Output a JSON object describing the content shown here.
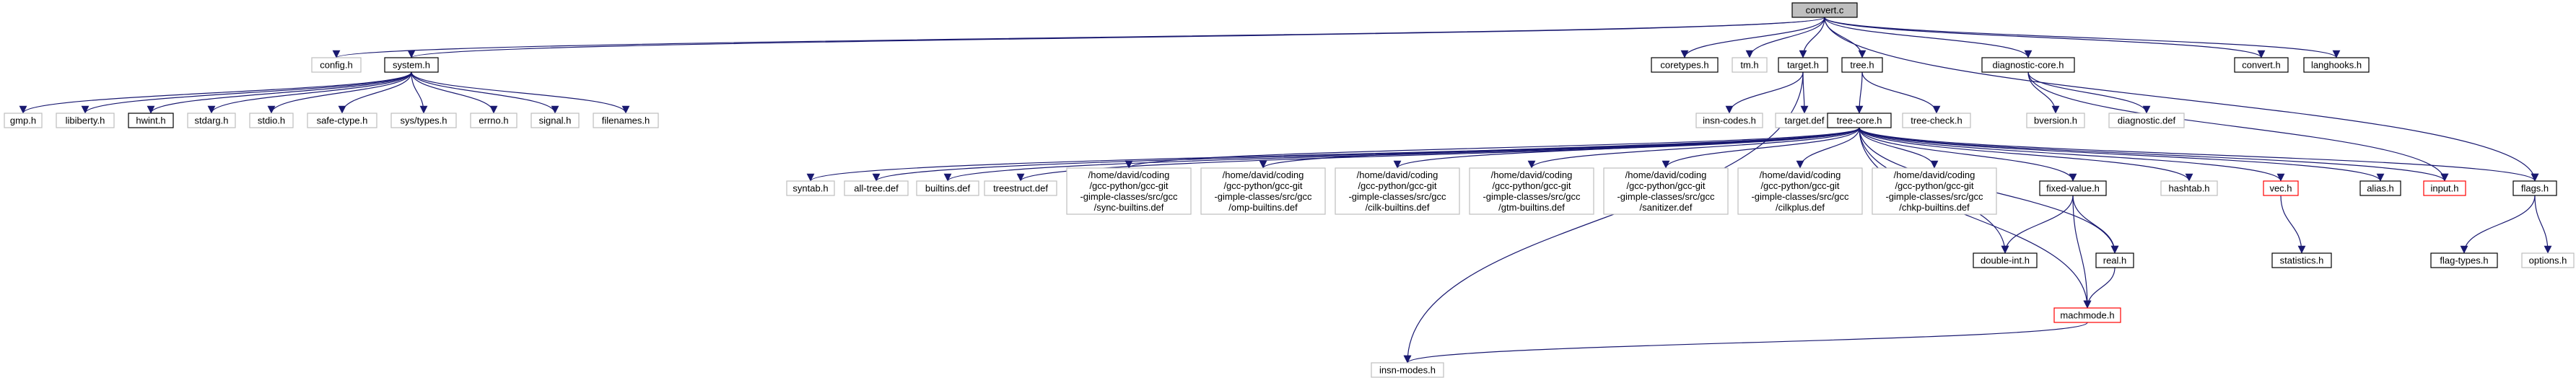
{
  "title": "convert.c",
  "colors": {
    "root_fill": "#bfbfbf",
    "root_stroke": "#000000",
    "documented_stroke": "#000000",
    "undocumented_stroke": "#bfbfbf",
    "truncated_stroke": "#ff0000",
    "edge": "#191970"
  },
  "nodes": [
    {
      "id": "convert_c",
      "lines": [
        "convert.c"
      ],
      "style": "root"
    },
    {
      "id": "config_h",
      "lines": [
        "config.h"
      ],
      "style": "gray"
    },
    {
      "id": "system_h",
      "lines": [
        "system.h"
      ],
      "style": "black"
    },
    {
      "id": "coretypes_h",
      "lines": [
        "coretypes.h"
      ],
      "style": "black"
    },
    {
      "id": "tm_h",
      "lines": [
        "tm.h"
      ],
      "style": "gray"
    },
    {
      "id": "target_h",
      "lines": [
        "target.h"
      ],
      "style": "black"
    },
    {
      "id": "tree_h",
      "lines": [
        "tree.h"
      ],
      "style": "black"
    },
    {
      "id": "diagnostic_core_h",
      "lines": [
        "diagnostic-core.h"
      ],
      "style": "black"
    },
    {
      "id": "convert_h",
      "lines": [
        "convert.h"
      ],
      "style": "black"
    },
    {
      "id": "langhooks_h",
      "lines": [
        "langhooks.h"
      ],
      "style": "black"
    },
    {
      "id": "gmp_h",
      "lines": [
        "gmp.h"
      ],
      "style": "gray"
    },
    {
      "id": "libiberty_h",
      "lines": [
        "libiberty.h"
      ],
      "style": "gray"
    },
    {
      "id": "hwint_h",
      "lines": [
        "hwint.h"
      ],
      "style": "black"
    },
    {
      "id": "stdarg_h",
      "lines": [
        "stdarg.h"
      ],
      "style": "gray"
    },
    {
      "id": "stdio_h",
      "lines": [
        "stdio.h"
      ],
      "style": "gray"
    },
    {
      "id": "safe_ctype_h",
      "lines": [
        "safe-ctype.h"
      ],
      "style": "gray"
    },
    {
      "id": "sys_types_h",
      "lines": [
        "sys/types.h"
      ],
      "style": "gray"
    },
    {
      "id": "errno_h",
      "lines": [
        "errno.h"
      ],
      "style": "gray"
    },
    {
      "id": "signal_h",
      "lines": [
        "signal.h"
      ],
      "style": "gray"
    },
    {
      "id": "filenames_h",
      "lines": [
        "filenames.h"
      ],
      "style": "gray"
    },
    {
      "id": "insn_codes_h",
      "lines": [
        "insn-codes.h"
      ],
      "style": "gray"
    },
    {
      "id": "target_def",
      "lines": [
        "target.def"
      ],
      "style": "gray"
    },
    {
      "id": "tree_core_h",
      "lines": [
        "tree-core.h"
      ],
      "style": "black"
    },
    {
      "id": "tree_check_h",
      "lines": [
        "tree-check.h"
      ],
      "style": "gray"
    },
    {
      "id": "bversion_h",
      "lines": [
        "bversion.h"
      ],
      "style": "gray"
    },
    {
      "id": "diagnostic_def",
      "lines": [
        "diagnostic.def"
      ],
      "style": "gray"
    },
    {
      "id": "flags_h",
      "lines": [
        "flags.h"
      ],
      "style": "black"
    },
    {
      "id": "syntab_h",
      "lines": [
        "syntab.h"
      ],
      "style": "gray"
    },
    {
      "id": "all_tree_def",
      "lines": [
        "all-tree.def"
      ],
      "style": "gray"
    },
    {
      "id": "builtins_def",
      "lines": [
        "builtins.def"
      ],
      "style": "gray"
    },
    {
      "id": "treestruct_def",
      "lines": [
        "treestruct.def"
      ],
      "style": "gray"
    },
    {
      "id": "sync_builtins",
      "lines": [
        "/home/david/coding",
        "/gcc-python/gcc-git",
        "-gimple-classes/src/gcc",
        "/sync-builtins.def"
      ],
      "style": "gray"
    },
    {
      "id": "omp_builtins",
      "lines": [
        "/home/david/coding",
        "/gcc-python/gcc-git",
        "-gimple-classes/src/gcc",
        "/omp-builtins.def"
      ],
      "style": "gray"
    },
    {
      "id": "cilk_builtins",
      "lines": [
        "/home/david/coding",
        "/gcc-python/gcc-git",
        "-gimple-classes/src/gcc",
        "/cilk-builtins.def"
      ],
      "style": "gray"
    },
    {
      "id": "gtm_builtins",
      "lines": [
        "/home/david/coding",
        "/gcc-python/gcc-git",
        "-gimple-classes/src/gcc",
        "/gtm-builtins.def"
      ],
      "style": "gray"
    },
    {
      "id": "sanitizer_def",
      "lines": [
        "/home/david/coding",
        "/gcc-python/gcc-git",
        "-gimple-classes/src/gcc",
        "/sanitizer.def"
      ],
      "style": "gray"
    },
    {
      "id": "cilkplus_def",
      "lines": [
        "/home/david/coding",
        "/gcc-python/gcc-git",
        "-gimple-classes/src/gcc",
        "/cilkplus.def"
      ],
      "style": "gray"
    },
    {
      "id": "chkp_builtins",
      "lines": [
        "/home/david/coding",
        "/gcc-python/gcc-git",
        "-gimple-classes/src/gcc",
        "/chkp-builtins.def"
      ],
      "style": "gray"
    },
    {
      "id": "fixed_value_h",
      "lines": [
        "fixed-value.h"
      ],
      "style": "black"
    },
    {
      "id": "hashtab_h",
      "lines": [
        "hashtab.h"
      ],
      "style": "gray"
    },
    {
      "id": "vec_h",
      "lines": [
        "vec.h"
      ],
      "style": "red"
    },
    {
      "id": "alias_h",
      "lines": [
        "alias.h"
      ],
      "style": "black"
    },
    {
      "id": "input_h",
      "lines": [
        "input.h"
      ],
      "style": "red"
    },
    {
      "id": "double_int_h",
      "lines": [
        "double-int.h"
      ],
      "style": "black"
    },
    {
      "id": "real_h",
      "lines": [
        "real.h"
      ],
      "style": "black"
    },
    {
      "id": "statistics_h",
      "lines": [
        "statistics.h"
      ],
      "style": "black"
    },
    {
      "id": "flag_types_h",
      "lines": [
        "flag-types.h"
      ],
      "style": "black"
    },
    {
      "id": "options_h",
      "lines": [
        "options.h"
      ],
      "style": "gray"
    },
    {
      "id": "machmode_h",
      "lines": [
        "machmode.h"
      ],
      "style": "red"
    },
    {
      "id": "insn_modes_h",
      "lines": [
        "insn-modes.h"
      ],
      "style": "gray"
    }
  ]
}
